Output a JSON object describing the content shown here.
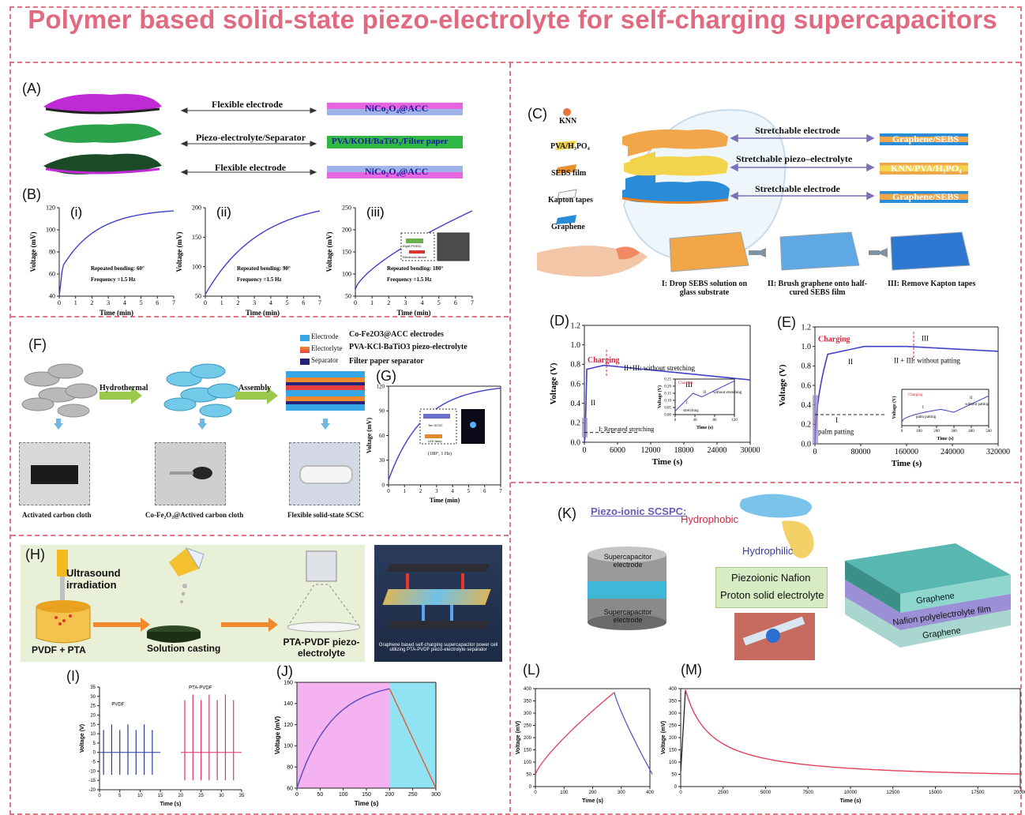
{
  "title": "Polymer based solid-state piezo-electrolyte for self-charging supercapacitors",
  "panels": {
    "A": "(A)",
    "B": "(B)",
    "C": "(C)",
    "D": "(D)",
    "E": "(E)",
    "F": "(F)",
    "G": "(G)",
    "H": "(H)",
    "I": "(I)",
    "J": "(J)",
    "K": "(K)",
    "L": "(L)",
    "M": "(M)"
  },
  "panelA": {
    "rows": [
      {
        "label": "Flexible electrode",
        "material": "NiCo₂O₄@ACC"
      },
      {
        "label": "Piezo-electrolyte/Separator",
        "material": "PVA/KOH/BaTiO₃/Filter paper"
      },
      {
        "label": "Flexible electrode",
        "material": "NiCo₂O₄@ACC"
      }
    ]
  },
  "panelB": {
    "ylabel": "Voltage (mV)",
    "xlabel": "Time (min)",
    "charts": [
      {
        "tag": "(i)",
        "note1": "Repeated bending: 60°",
        "note2": "Frequency =1.5 Hz",
        "yticks": [
          "40",
          "60",
          "80",
          "100",
          "120"
        ],
        "xticks": [
          "0",
          "1",
          "2",
          "3",
          "4",
          "5",
          "6",
          "7"
        ]
      },
      {
        "tag": "(ii)",
        "note1": "Repeated bending: 90°",
        "note2": "Frequency =1.5 Hz",
        "yticks": [
          "50",
          "100",
          "150",
          "200"
        ],
        "xticks": [
          "0",
          "1",
          "2",
          "3",
          "4",
          "5",
          "6",
          "7"
        ]
      },
      {
        "tag": "(iii)",
        "note1": "Repeated bending: 180°",
        "note2": "Frequency =1.5 Hz",
        "yticks": [
          "50",
          "100",
          "150",
          "200",
          "250"
        ],
        "xticks": [
          "0",
          "1",
          "2",
          "3",
          "4",
          "5",
          "6",
          "7"
        ],
        "inset1": "Eight PSSSC",
        "inset2": "Electronic device"
      }
    ]
  },
  "panelC": {
    "legend": [
      "KNN",
      "PVA/H₃PO₄",
      "SEBS film",
      "Kapton tapes",
      "Graphene"
    ],
    "rows": [
      {
        "label": "Stretchable electrode",
        "material": "Graphene/SEBS"
      },
      {
        "label": "Stretchable piezo–electrolyte",
        "material": "KNN/PVA/H₃PO₄"
      },
      {
        "label": "Stretchable electrode",
        "material": "Graphene/SEBS"
      }
    ],
    "steps": [
      "I: Drop SEBS solution on glass substrate",
      "II: Brush graphene onto half-cured SEBS film",
      "III: Remove Kapton tapes"
    ]
  },
  "panelD": {
    "ylabel": "Voltage (V)",
    "xlabel": "Time (s)",
    "yticks": [
      "0.0",
      "0.2",
      "0.4",
      "0.6",
      "0.8",
      "1.0",
      "1.2"
    ],
    "xticks": [
      "0",
      "6000",
      "12000",
      "18000",
      "24000",
      "30000"
    ],
    "charging": "Charging",
    "phase_label": "II+III: without stretching",
    "ii": "II",
    "iii": "III",
    "i": "I: Repeated stretching",
    "inset": {
      "charging": "Charging",
      "ylabel": "Voltage (V)",
      "xlabel": "Time (s)",
      "yticks": [
        "0.00",
        "0.05",
        "0.10",
        "0.15",
        "0.20",
        "0.25"
      ],
      "xticks": [
        "0",
        "40",
        "80",
        "120"
      ],
      "stretching": "stretching",
      "without": "without stretching",
      "i": "I",
      "ii": "II"
    }
  },
  "panelE": {
    "ylabel": "Voltage (V)",
    "xlabel": "Time (s)",
    "yticks": [
      "0.0",
      "0.2",
      "0.4",
      "0.6",
      "0.8",
      "1.0",
      "1.2"
    ],
    "xticks": [
      "0",
      "80000",
      "160000",
      "240000",
      "320000"
    ],
    "charging": "Charging",
    "phase_label": "II + III: without patting",
    "ii": "II",
    "iii": "III",
    "i": "I",
    "palm": "palm patting",
    "inset": {
      "charging": "Charging",
      "ylabel": "Voltage (V)",
      "xlabel": "Time (s)",
      "xticks": [
        "0",
        "100",
        "200",
        "300",
        "400",
        "500"
      ],
      "i": "I",
      "ii": "II",
      "palm": "palm patting",
      "without": "without patting"
    }
  },
  "panelF": {
    "legend": [
      {
        "key": "Electrode",
        "desc": "Co-Fe2O3@ACC electrodes"
      },
      {
        "key": "Electorlyte",
        "desc": "PVA-KCl-BaTiO3 piezo-electrolyte"
      },
      {
        "key": "Separator",
        "desc": "Filter paper separator"
      }
    ],
    "arrows": [
      "Hydrothermal",
      "Assembly"
    ],
    "captions": [
      "Activated carbon cloth",
      "Co-Fe₂O₃@Actived carbon cloth",
      "Flexible solid-state SCSC"
    ]
  },
  "panelG": {
    "ylabel": "Voltage (mV)",
    "xlabel": "Time (min)",
    "yticks": [
      "0",
      "30",
      "60",
      "90",
      "120"
    ],
    "xticks": [
      "0",
      "1",
      "2",
      "3",
      "4",
      "5",
      "6",
      "7"
    ],
    "inset1": "Ten SCSC",
    "inset2": "LED lamp",
    "note": "(180°, 1 Hz)"
  },
  "panelH": {
    "ultrasound": "Ultrasound irradiation",
    "pvdf": "PVDF + PTA",
    "casting": "Solution casting",
    "product": "PTA-PVDF piezo-electrolyte",
    "caption": "Graphene based self-charging supercapacitor power cell utilizing PTA-PVDF piezo-electrolyte separator"
  },
  "panelI": {
    "ylabel": "Voltage (V)",
    "xlabel": "Time (s)",
    "yticks": [
      "-20",
      "-15",
      "-10",
      "-5",
      "0",
      "5",
      "10",
      "15",
      "20",
      "25",
      "30",
      "35"
    ],
    "xticks": [
      "0",
      "5",
      "10",
      "15",
      "20",
      "25",
      "30",
      "35"
    ],
    "series1": "PVDF",
    "series2": "PTA-PVDF"
  },
  "panelJ": {
    "ylabel": "Voltage (mV)",
    "xlabel": "Time (s)",
    "yticks": [
      "60",
      "80",
      "100",
      "120",
      "140",
      "160"
    ],
    "xticks": [
      "0",
      "50",
      "100",
      "150",
      "200",
      "250",
      "300"
    ]
  },
  "panelK": {
    "heading": "Piezo-ionic SCSPC:",
    "hydrophobic": "Hydrophobic",
    "hydrophilic": "Hydrophilic",
    "nafion1": "Piezoionic Nafion",
    "nafion2": "Proton solid electrolyte",
    "sc_top": "Supercapacitor electrode",
    "sc_bottom": "Supercapacitor electrode",
    "stack": [
      "Graphene",
      "Nafion polyelectrolyte film",
      "Graphene"
    ]
  },
  "panelL": {
    "ylabel": "Voltage (mV)",
    "xlabel": "Time (s)",
    "yticks": [
      "0",
      "50",
      "100",
      "150",
      "200",
      "250",
      "300",
      "350",
      "400"
    ],
    "xticks": [
      "0",
      "100",
      "200",
      "300",
      "400"
    ]
  },
  "panelM": {
    "ylabel": "Voltage (mV)",
    "xlabel": "Time (s)",
    "yticks": [
      "0",
      "50",
      "100",
      "150",
      "200",
      "250",
      "300",
      "350",
      "400"
    ],
    "xticks": [
      "0",
      "2500",
      "5000",
      "7500",
      "10000",
      "12500",
      "15000",
      "17500",
      "20000"
    ]
  },
  "colors": {
    "accent": "#e06a7f",
    "curve": "#3f3fc9",
    "red": "#e2415a"
  }
}
